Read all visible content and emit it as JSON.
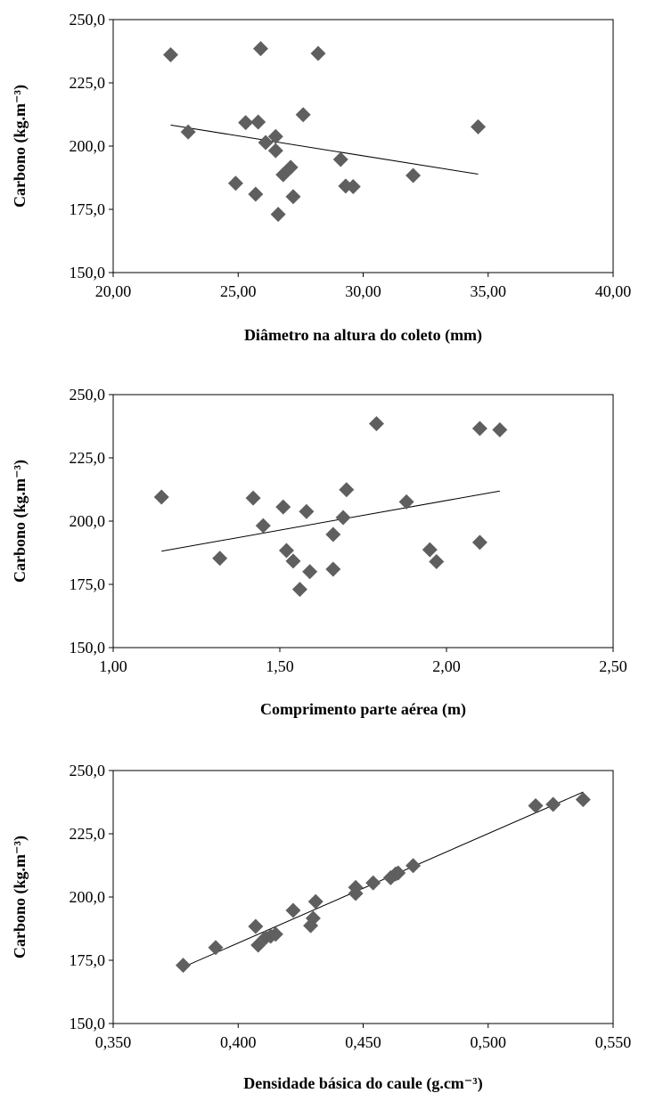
{
  "colors": {
    "marker": "#5f5f5f",
    "trendline": "#000000",
    "frame": "#000000"
  },
  "chart_data": [
    {
      "type": "scatter",
      "title": "",
      "xlabel": "Diâmetro na altura do coleto (mm)",
      "ylabel": "Carbono (kg.m⁻³)",
      "xlim": [
        20,
        40
      ],
      "ylim": [
        150,
        250
      ],
      "xticks": [
        20,
        25,
        30,
        35,
        40
      ],
      "yticks": [
        150,
        175,
        200,
        225,
        250
      ],
      "xtick_labels": [
        "20,00",
        "25,00",
        "30,00",
        "35,00",
        "40,00"
      ],
      "ytick_labels": [
        "150,0",
        "175,0",
        "200,0",
        "225,0",
        "250,0"
      ],
      "grid": false,
      "legend": "none",
      "marker": "diamond",
      "points": [
        {
          "x": 22.3,
          "y": 236.1
        },
        {
          "x": 23.0,
          "y": 205.6
        },
        {
          "x": 24.9,
          "y": 185.3
        },
        {
          "x": 25.3,
          "y": 209.3
        },
        {
          "x": 25.7,
          "y": 181.0
        },
        {
          "x": 25.8,
          "y": 209.5
        },
        {
          "x": 25.9,
          "y": 238.5
        },
        {
          "x": 26.1,
          "y": 201.4
        },
        {
          "x": 26.5,
          "y": 203.8
        },
        {
          "x": 26.5,
          "y": 198.2
        },
        {
          "x": 26.6,
          "y": 173.0
        },
        {
          "x": 26.8,
          "y": 188.7
        },
        {
          "x": 27.1,
          "y": 191.6
        },
        {
          "x": 27.2,
          "y": 180.0
        },
        {
          "x": 27.6,
          "y": 212.4
        },
        {
          "x": 28.2,
          "y": 236.6
        },
        {
          "x": 29.1,
          "y": 194.7
        },
        {
          "x": 29.3,
          "y": 184.2
        },
        {
          "x": 29.6,
          "y": 184.0
        },
        {
          "x": 32.0,
          "y": 188.4
        },
        {
          "x": 34.6,
          "y": 207.6
        }
      ],
      "trendline": [
        {
          "x": 22.3,
          "y": 208.3
        },
        {
          "x": 34.6,
          "y": 188.9
        }
      ]
    },
    {
      "type": "scatter",
      "title": "",
      "xlabel": "Comprimento parte aérea (m)",
      "ylabel": "Carbono (kg.m⁻³)",
      "xlim": [
        1,
        2.5
      ],
      "ylim": [
        150,
        250
      ],
      "xticks": [
        1,
        1.5,
        2,
        2.5
      ],
      "yticks": [
        150,
        175,
        200,
        225,
        250
      ],
      "xtick_labels": [
        "1,00",
        "1,50",
        "2,00",
        "2,50"
      ],
      "ytick_labels": [
        "150,0",
        "175,0",
        "200,0",
        "225,0",
        "250,0"
      ],
      "grid": false,
      "legend": "none",
      "marker": "diamond",
      "points": [
        {
          "x": 1.145,
          "y": 209.5
        },
        {
          "x": 1.32,
          "y": 185.3
        },
        {
          "x": 1.42,
          "y": 209.1
        },
        {
          "x": 1.45,
          "y": 198.2
        },
        {
          "x": 1.51,
          "y": 205.6
        },
        {
          "x": 1.52,
          "y": 188.4
        },
        {
          "x": 1.54,
          "y": 184.2
        },
        {
          "x": 1.56,
          "y": 173.0
        },
        {
          "x": 1.58,
          "y": 203.8
        },
        {
          "x": 1.59,
          "y": 180.0
        },
        {
          "x": 1.66,
          "y": 194.7
        },
        {
          "x": 1.66,
          "y": 181.0
        },
        {
          "x": 1.69,
          "y": 201.4
        },
        {
          "x": 1.7,
          "y": 212.4
        },
        {
          "x": 1.79,
          "y": 238.5
        },
        {
          "x": 1.88,
          "y": 207.6
        },
        {
          "x": 1.95,
          "y": 188.7
        },
        {
          "x": 1.97,
          "y": 184.0
        },
        {
          "x": 2.1,
          "y": 236.6
        },
        {
          "x": 2.1,
          "y": 191.6
        },
        {
          "x": 2.16,
          "y": 236.1
        }
      ],
      "trendline": [
        {
          "x": 1.145,
          "y": 188.1
        },
        {
          "x": 2.16,
          "y": 211.9
        }
      ]
    },
    {
      "type": "scatter",
      "title": "",
      "xlabel": "Densidade básica do caule (g.cm⁻³)",
      "ylabel": "Carbono (kg.m⁻³)",
      "xlim": [
        0.35,
        0.55
      ],
      "ylim": [
        150,
        250
      ],
      "xticks": [
        0.35,
        0.4,
        0.45,
        0.5,
        0.55
      ],
      "yticks": [
        150,
        175,
        200,
        225,
        250
      ],
      "xtick_labels": [
        "0,350",
        "0,400",
        "0,450",
        "0,500",
        "0,550"
      ],
      "ytick_labels": [
        "150,0",
        "175,0",
        "200,0",
        "225,0",
        "250,0"
      ],
      "grid": false,
      "legend": "none",
      "marker": "diamond",
      "points": [
        {
          "x": 0.378,
          "y": 173.0
        },
        {
          "x": 0.391,
          "y": 180.0
        },
        {
          "x": 0.407,
          "y": 188.4
        },
        {
          "x": 0.408,
          "y": 181.0
        },
        {
          "x": 0.411,
          "y": 184.0
        },
        {
          "x": 0.413,
          "y": 184.5
        },
        {
          "x": 0.415,
          "y": 185.3
        },
        {
          "x": 0.422,
          "y": 194.7
        },
        {
          "x": 0.429,
          "y": 188.7
        },
        {
          "x": 0.43,
          "y": 191.6
        },
        {
          "x": 0.431,
          "y": 198.2
        },
        {
          "x": 0.447,
          "y": 203.8
        },
        {
          "x": 0.447,
          "y": 201.4
        },
        {
          "x": 0.454,
          "y": 205.6
        },
        {
          "x": 0.461,
          "y": 207.6
        },
        {
          "x": 0.463,
          "y": 209.1
        },
        {
          "x": 0.464,
          "y": 209.5
        },
        {
          "x": 0.47,
          "y": 212.4
        },
        {
          "x": 0.519,
          "y": 236.1
        },
        {
          "x": 0.526,
          "y": 236.6
        },
        {
          "x": 0.538,
          "y": 238.5
        }
      ],
      "trendline": [
        {
          "x": 0.378,
          "y": 172.3
        },
        {
          "x": 0.538,
          "y": 241.5
        }
      ]
    }
  ]
}
